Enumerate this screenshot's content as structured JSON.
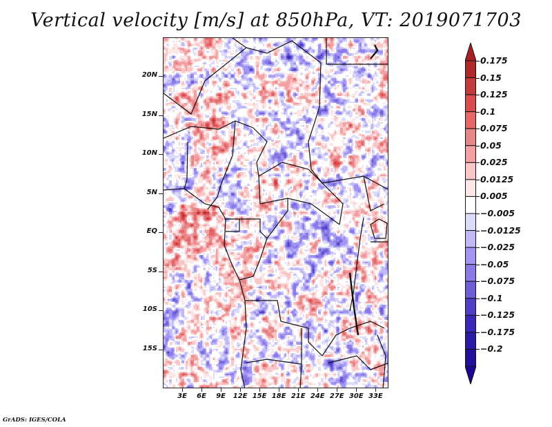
{
  "title": "Vertical velocity [m/s] at 850hPa, VT: 2019071703",
  "credit": "GrADS: IGES/COLA",
  "map": {
    "variable": "Vertical velocity",
    "units": "m/s",
    "level": "850hPa",
    "valid_time": "2019071703",
    "lon_range_deg": [
      0,
      35
    ],
    "lat_range_deg": [
      -20,
      25
    ],
    "lat_labels": [
      "20N",
      "15N",
      "10N",
      "5N",
      "EQ",
      "5S",
      "10S",
      "15S"
    ],
    "lat_values": [
      20,
      15,
      10,
      5,
      0,
      -5,
      -10,
      -15
    ],
    "lon_labels": [
      "3E",
      "6E",
      "9E",
      "12E",
      "15E",
      "18E",
      "21E",
      "24E",
      "27E",
      "30E",
      "33E"
    ],
    "lon_values": [
      3,
      6,
      9,
      12,
      15,
      18,
      21,
      24,
      27,
      30,
      33
    ]
  },
  "colorbar": {
    "levels": [
      "0.175",
      "0.15",
      "0.125",
      "0.1",
      "0.075",
      "0.05",
      "0.025",
      "0.0125",
      "0.005",
      "-0.005",
      "-0.0125",
      "-0.025",
      "-0.05",
      "-0.075",
      "-0.1",
      "-0.125",
      "-0.175",
      "-0.2"
    ],
    "colors": [
      "#b2282a",
      "#c53a3c",
      "#dc4b4e",
      "#e86668",
      "#e68688",
      "#f4a0a2",
      "#f8c6c6",
      "#fde6e6",
      "#ffffff",
      "#dcdcfa",
      "#c0b8f8",
      "#a294f4",
      "#8a7ae8",
      "#6f5fd6",
      "#4f3fcb",
      "#3a28bb",
      "#2a1aa8",
      "#20109a"
    ],
    "over_color": "#a82024",
    "under_color": "#1a0690"
  }
}
